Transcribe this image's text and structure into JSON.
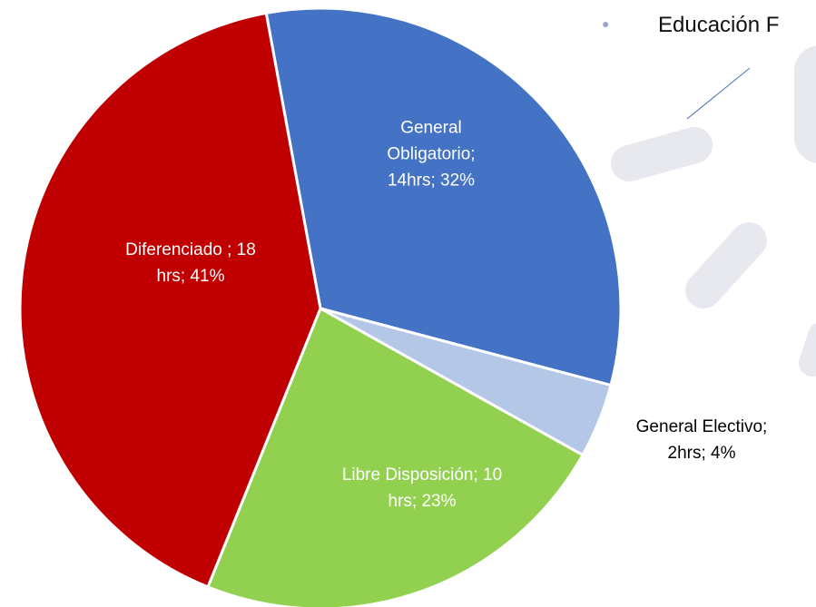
{
  "chart_data": {
    "type": "pie",
    "annotation": "Educación F",
    "values": [
      32,
      4,
      23,
      41
    ],
    "value_labels": [
      "General Obligatorio; 14hrs; 32%",
      "General Electivo; 2hrs; 4%",
      "Libre Disposición; 10 hrs; 23%",
      "Diferenciado ; 18 hrs; 41%"
    ],
    "colors": [
      "#4472c4",
      "#b4c7e7",
      "#92d050",
      "#c00000"
    ]
  }
}
